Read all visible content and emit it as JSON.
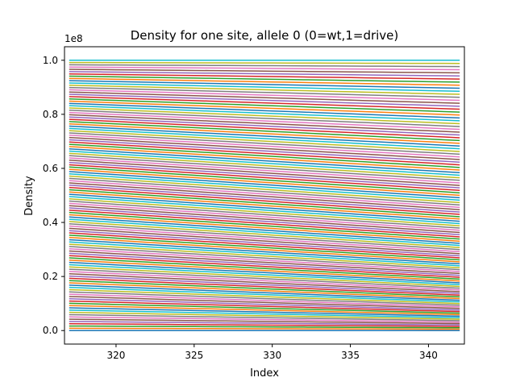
{
  "chart_data": {
    "type": "line",
    "title": "Density for one site, allele 0 (0=wt,1=drive)",
    "xlabel": "Index",
    "ylabel": "Density",
    "y_offset_label": "1e8",
    "xlim": [
      316.7,
      342.3
    ],
    "ylim": [
      -0.05,
      1.05
    ],
    "x_ticks": [
      320,
      325,
      330,
      335,
      340
    ],
    "x_tick_labels": [
      "320",
      "325",
      "330",
      "335",
      "340"
    ],
    "y_ticks": [
      0.0,
      0.2,
      0.4,
      0.6,
      0.8,
      1.0
    ],
    "y_tick_labels": [
      "0.0",
      "0.2",
      "0.4",
      "0.6",
      "0.8",
      "1.0"
    ],
    "grid": false,
    "legend": "none",
    "series_description": "many overlapping lines, one per starting density",
    "series_count": 120,
    "x_range": [
      317,
      342
    ],
    "series_start_values": [
      0.0,
      1.0
    ],
    "series_end_values": [
      0.0,
      1.0
    ],
    "series_decline_at_midpoint": 0.1,
    "colors": [
      "#1f77b4",
      "#ff7f0e",
      "#2ca02c",
      "#d62728",
      "#9467bd",
      "#8c564b",
      "#e377c2",
      "#7f7f7f",
      "#bcbd22",
      "#17becf"
    ]
  }
}
